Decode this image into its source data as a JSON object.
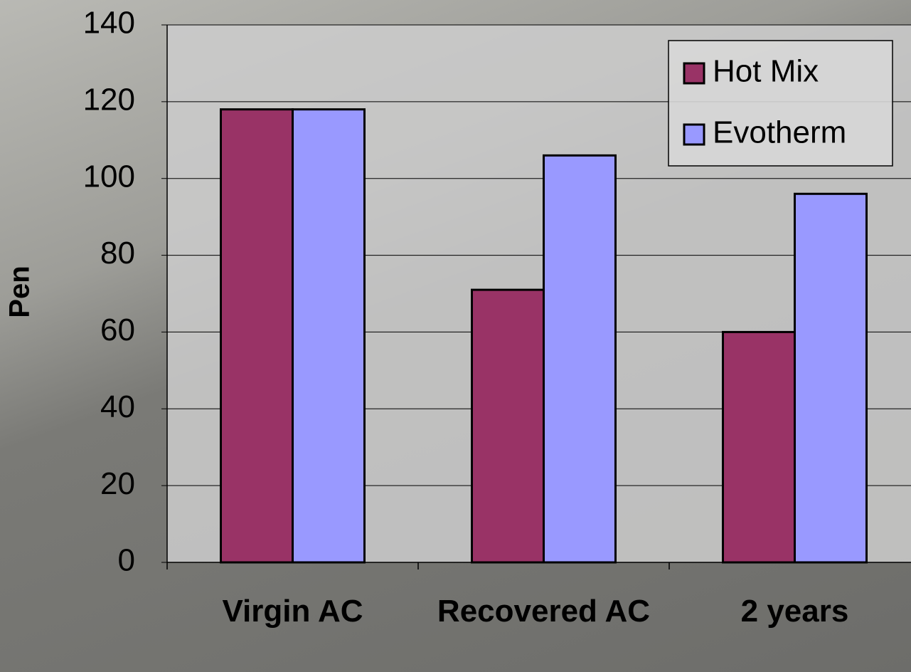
{
  "chart_data": {
    "type": "bar",
    "y_label": "Pen",
    "categories": [
      "Virgin AC",
      "Recovered AC",
      "2 years"
    ],
    "series": [
      {
        "name": "Hot Mix",
        "color": "#993366",
        "values": [
          118,
          71,
          60
        ]
      },
      {
        "name": "Evotherm",
        "color": "#9999ff",
        "values": [
          118,
          106,
          96
        ]
      }
    ],
    "ylim": [
      0,
      140
    ],
    "yticks": [
      0,
      20,
      40,
      60,
      80,
      100,
      120,
      140
    ],
    "grid": true,
    "legend": "top-right"
  }
}
